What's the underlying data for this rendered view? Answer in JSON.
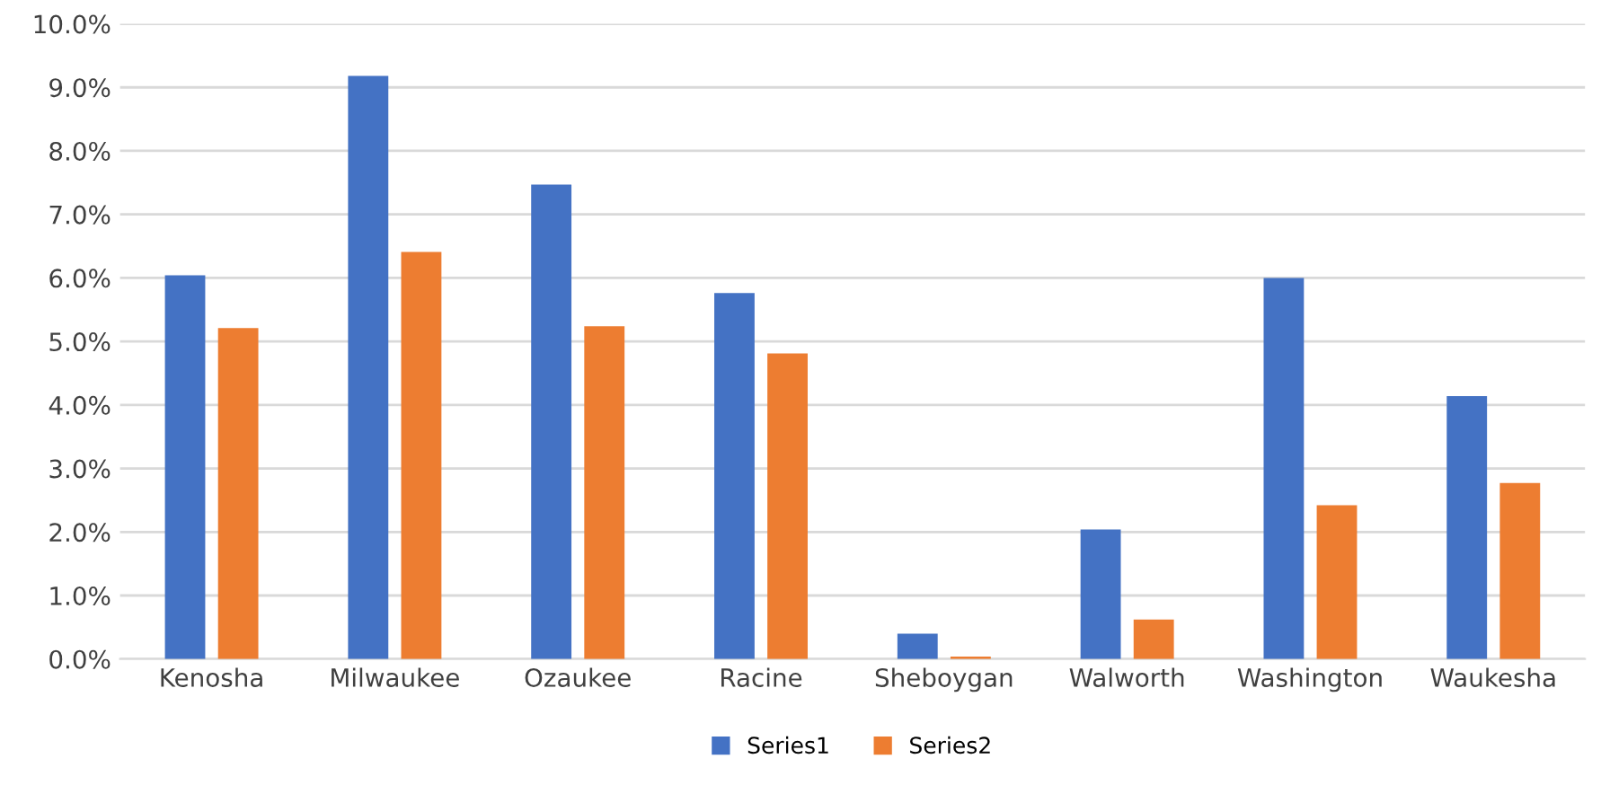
{
  "chart_data": {
    "type": "bar",
    "categories": [
      "Kenosha",
      "Milwaukee",
      "Ozaukee",
      "Racine",
      "Sheboygan",
      "Walworth",
      "Washington",
      "Waukesha"
    ],
    "series": [
      {
        "name": "Series1",
        "color": "#4472c4",
        "values": [
          6.04,
          9.18,
          7.47,
          5.76,
          0.4,
          2.04,
          6.0,
          4.14
        ]
      },
      {
        "name": "Series2",
        "color": "#ed7d31",
        "values": [
          5.21,
          6.41,
          5.24,
          4.81,
          0.04,
          0.62,
          2.42,
          2.77
        ]
      }
    ],
    "ylim": [
      0,
      10
    ],
    "yticks": [
      {
        "value": 0,
        "label": "0.0%"
      },
      {
        "value": 1,
        "label": "1.0%"
      },
      {
        "value": 2,
        "label": "2.0%"
      },
      {
        "value": 3,
        "label": "3.0%"
      },
      {
        "value": 4,
        "label": "4.0%"
      },
      {
        "value": 5,
        "label": "5.0%"
      },
      {
        "value": 6,
        "label": "6.0%"
      },
      {
        "value": 7,
        "label": "7.0%"
      },
      {
        "value": 8,
        "label": "8.0%"
      },
      {
        "value": 9,
        "label": "9.0%"
      },
      {
        "value": 10,
        "label": "10.0%"
      }
    ],
    "grid": "y",
    "legend": "bottom"
  }
}
